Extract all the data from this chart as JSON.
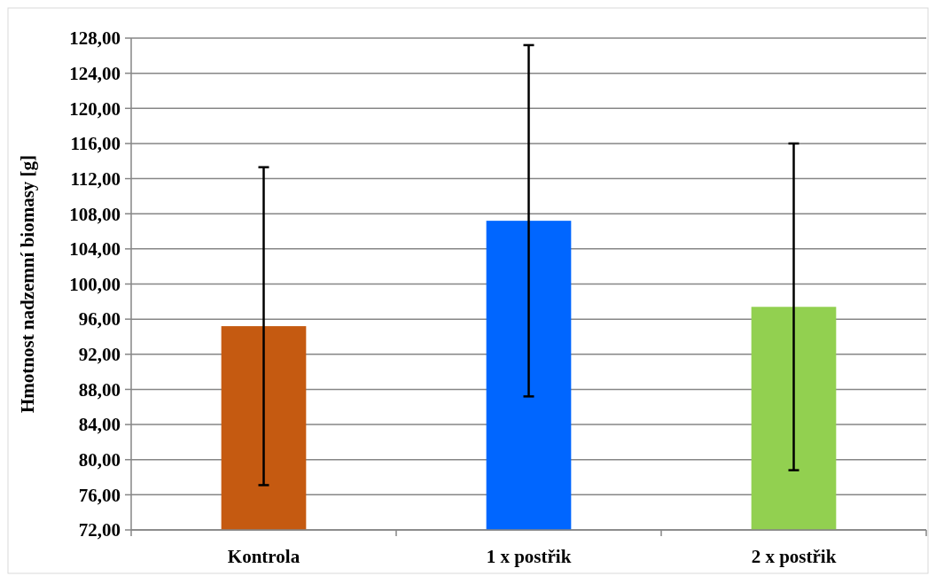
{
  "chart_data": {
    "type": "bar",
    "ylabel": "Hmotnost nadzemní biomasy [g]",
    "categories": [
      "Kontrola",
      "1 x postřik",
      "2 x postřik"
    ],
    "values": [
      95.2,
      107.2,
      97.4
    ],
    "colors": [
      "#c55a11",
      "#0066ff",
      "#92d050"
    ],
    "errors": [
      18.1,
      20.0,
      18.6
    ],
    "ylim": [
      72,
      128
    ],
    "yticks": [
      {
        "value": 72,
        "label": "72,00"
      },
      {
        "value": 76,
        "label": "76,00"
      },
      {
        "value": 80,
        "label": "80,00"
      },
      {
        "value": 84,
        "label": "84,00"
      },
      {
        "value": 88,
        "label": "88,00"
      },
      {
        "value": 92,
        "label": "92,00"
      },
      {
        "value": 96,
        "label": "96,00"
      },
      {
        "value": 100,
        "label": "100,00"
      },
      {
        "value": 104,
        "label": "104,00"
      },
      {
        "value": 108,
        "label": "108,00"
      },
      {
        "value": 112,
        "label": "112,00"
      },
      {
        "value": 116,
        "label": "116,00"
      },
      {
        "value": 120,
        "label": "120,00"
      },
      {
        "value": 124,
        "label": "124,00"
      },
      {
        "value": 128,
        "label": "128,00"
      }
    ],
    "grid": "y"
  }
}
